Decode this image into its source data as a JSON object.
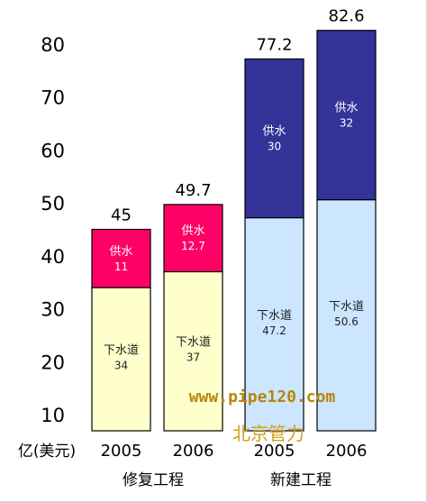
{
  "chart_data": {
    "type": "bar",
    "stacked": true,
    "unit_label": "亿(美元)",
    "y_ticks": [
      10,
      20,
      30,
      40,
      50,
      60,
      70,
      80
    ],
    "groups": [
      "修复工程",
      "新建工程"
    ],
    "categories": [
      {
        "year": "2005",
        "group": "修复工程"
      },
      {
        "year": "2006",
        "group": "修复工程"
      },
      {
        "year": "2005",
        "group": "新建工程"
      },
      {
        "year": "2006",
        "group": "新建工程"
      }
    ],
    "series": [
      {
        "name": "下水道",
        "values": [
          34,
          37,
          47.2,
          50.6
        ],
        "labels": [
          "34",
          "37",
          "47.2",
          "50.6"
        ]
      },
      {
        "name": "供水",
        "values": [
          11,
          12.7,
          30,
          32
        ],
        "labels": [
          "11",
          "12.7",
          "30",
          "32"
        ]
      }
    ],
    "totals": [
      "45",
      "49.7",
      "77.2",
      "82.6"
    ],
    "colors": {
      "sewer_rehab": "#ffffcc",
      "water_rehab": "#ff0066",
      "sewer_new": "#cce6ff",
      "water_new": "#333399"
    }
  },
  "watermark": {
    "url": "www.pipe120.com",
    "name": "北京管力"
  }
}
